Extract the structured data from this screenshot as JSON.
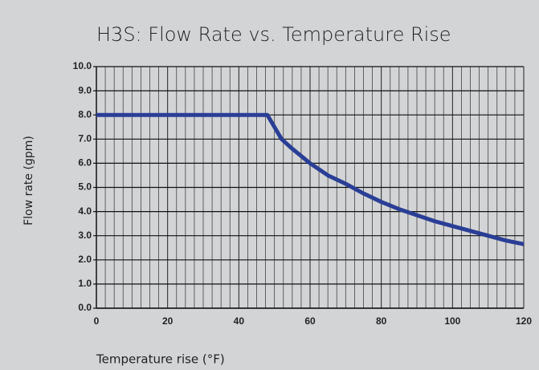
{
  "chart_data": {
    "type": "line",
    "title": "H3S: Flow Rate vs. Temperature Rise",
    "x_label": "Temperature rise (°F)",
    "y_label": "Flow rate (gpm)",
    "x": [
      0,
      48,
      50,
      52,
      55,
      60,
      65,
      70,
      75,
      80,
      85,
      90,
      95,
      100,
      105,
      110,
      115,
      120
    ],
    "series": [
      {
        "name": "H3S",
        "color": "#2a3e96",
        "values": [
          8.0,
          8.0,
          7.5,
          7.0,
          6.6,
          6.0,
          5.5,
          5.15,
          4.75,
          4.4,
          4.1,
          3.85,
          3.6,
          3.4,
          3.2,
          3.0,
          2.8,
          2.65
        ]
      }
    ],
    "xlim": [
      0,
      120
    ],
    "xticks": [
      0,
      20,
      40,
      60,
      80,
      100,
      120
    ],
    "xminorticks": [
      2.5,
      5,
      7.5,
      10,
      12.5,
      15,
      17.5,
      22.5,
      25,
      27.5,
      30,
      32.5,
      35,
      37.5,
      42.5,
      45,
      47.5,
      50,
      52.5,
      55,
      57.5,
      62.5,
      65,
      67.5,
      70,
      72.5,
      75,
      77.5,
      82.5,
      85,
      87.5,
      90,
      92.5,
      95,
      97.5,
      102.5,
      105,
      107.5,
      110,
      112.5,
      115,
      117.5
    ],
    "ylim": [
      0,
      10
    ],
    "yticks": [
      {
        "value": 0,
        "label": "0.0"
      },
      {
        "value": 1,
        "label": "1.0"
      },
      {
        "value": 2,
        "label": "2.0"
      },
      {
        "value": 3,
        "label": "3.0"
      },
      {
        "value": 4,
        "label": "4.0"
      },
      {
        "value": 5,
        "label": "5.0"
      },
      {
        "value": 6,
        "label": "6.0"
      },
      {
        "value": 7,
        "label": "7.0"
      },
      {
        "value": 8,
        "label": "8.0"
      },
      {
        "value": 9,
        "label": "9.0"
      },
      {
        "value": 10,
        "label": "10.0"
      }
    ],
    "grid": true
  }
}
